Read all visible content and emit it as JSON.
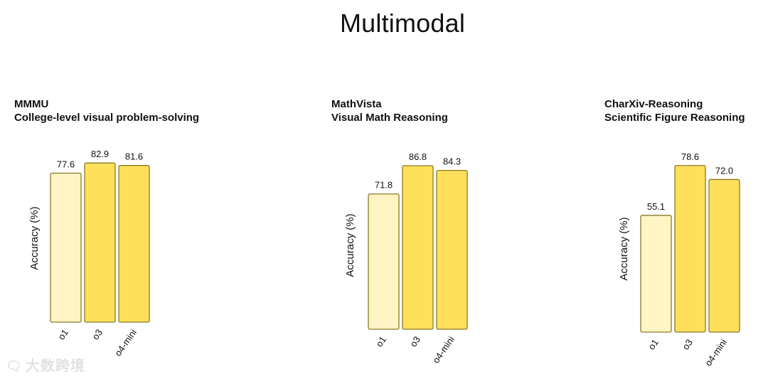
{
  "page_title": "Multimodal",
  "watermark": {
    "logo_icon": "chat-bubble-icon",
    "text": "大数跨境"
  },
  "colors": {
    "o1": "#fff4c4",
    "o3": "#ffe05a",
    "o4-mini": "#ffe05a",
    "stroke": "#8a7a2a"
  },
  "chart_data": [
    {
      "type": "bar",
      "title": "MMMU",
      "subtitle": "College-level visual problem-solving",
      "ylabel": "Accuracy (%)",
      "categories": [
        "o1",
        "o3",
        "o4-mini"
      ],
      "values": [
        77.6,
        82.9,
        81.6
      ],
      "value_labels": [
        "77.6",
        "82.9",
        "81.6"
      ],
      "ylim": [
        0,
        100
      ]
    },
    {
      "type": "bar",
      "title": "MathVista",
      "subtitle": "Visual Math Reasoning",
      "ylabel": "Accuracy (%)",
      "categories": [
        "o1",
        "o3",
        "o4-mini"
      ],
      "values": [
        71.8,
        86.8,
        84.3
      ],
      "value_labels": [
        "71.8",
        "86.8",
        "84.3"
      ],
      "ylim": [
        0,
        100
      ]
    },
    {
      "type": "bar",
      "title": "CharXiv-Reasoning",
      "subtitle": "Scientific Figure Reasoning",
      "ylabel": "Accuracy (%)",
      "categories": [
        "o1",
        "o3",
        "o4-mini"
      ],
      "values": [
        55.1,
        78.6,
        72.0
      ],
      "value_labels": [
        "55.1",
        "78.6",
        "72.0"
      ],
      "ylim": [
        0,
        100
      ]
    }
  ]
}
